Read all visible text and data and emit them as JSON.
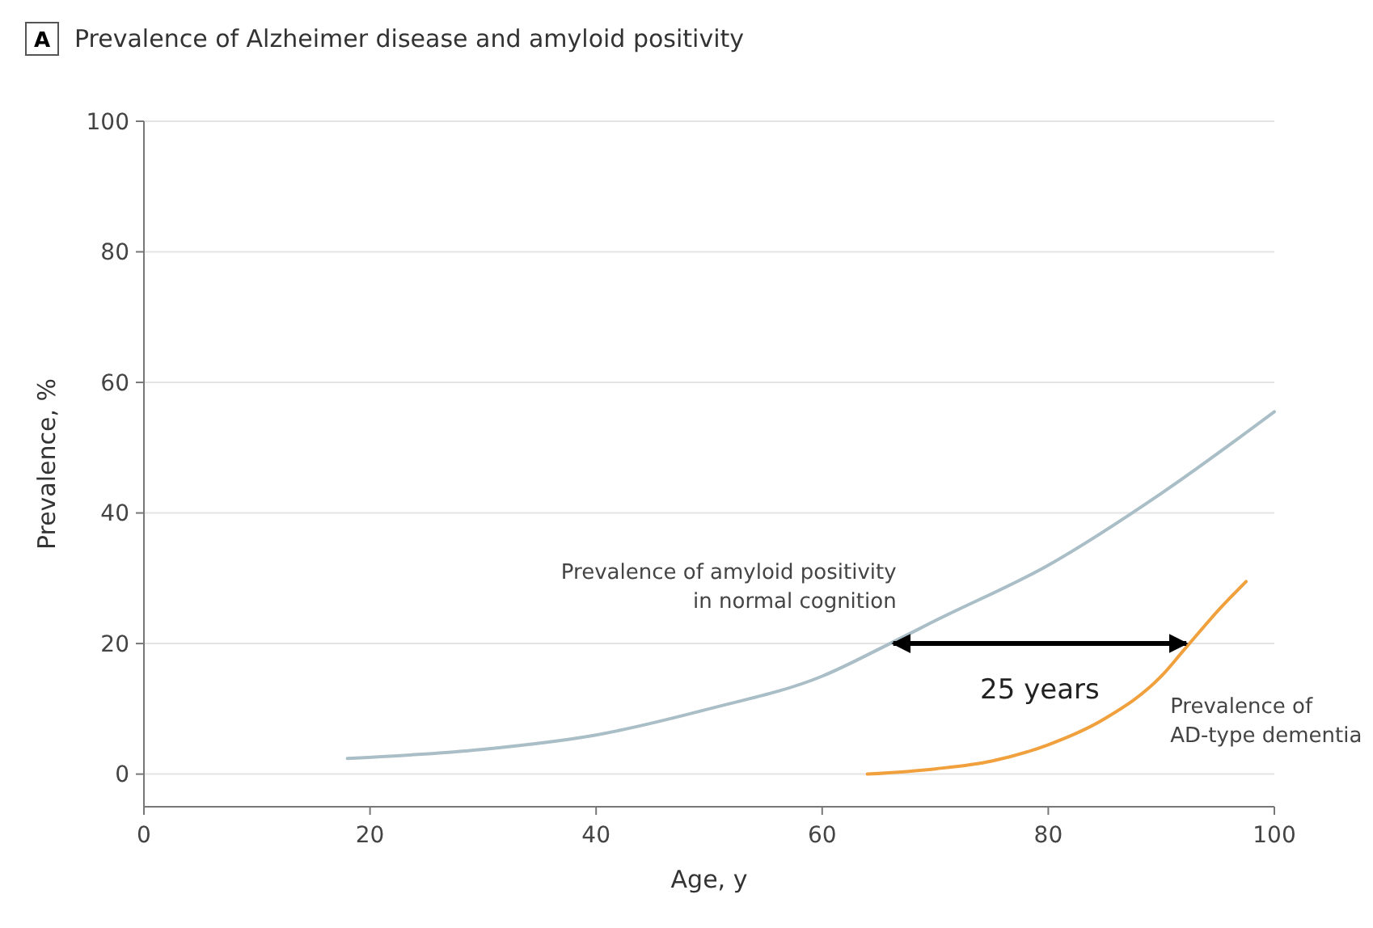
{
  "chart_data": {
    "type": "line",
    "title": "Prevalence of Alzheimer disease and amyloid positivity",
    "xlabel": "Age, y",
    "ylabel": "Prevalence, %",
    "xlim": [
      0,
      100
    ],
    "xticks": [
      0,
      20,
      40,
      60,
      80,
      100
    ],
    "ylim": [
      -5,
      100
    ],
    "yticks": [
      0,
      20,
      40,
      60,
      80,
      100
    ],
    "grid": "y",
    "series": [
      {
        "name": "Prevalence of amyloid positivity in normal cognition",
        "color": "#a9bec6",
        "x": [
          18,
          30,
          40,
          50,
          60,
          66,
          70,
          80,
          90,
          100
        ],
        "values": [
          2.4,
          3.8,
          6,
          10,
          15,
          20,
          23.5,
          32,
          43,
          55.5
        ]
      },
      {
        "name": "Prevalence of AD-type dementia",
        "color": "#f0a03c",
        "x": [
          64,
          70,
          75,
          80,
          85,
          90,
          92,
          95,
          97.5
        ],
        "values": [
          0,
          0.8,
          2,
          4.5,
          8.5,
          15,
          19,
          25,
          29.5
        ]
      }
    ],
    "annotations": [
      "A",
      "25 years"
    ]
  }
}
